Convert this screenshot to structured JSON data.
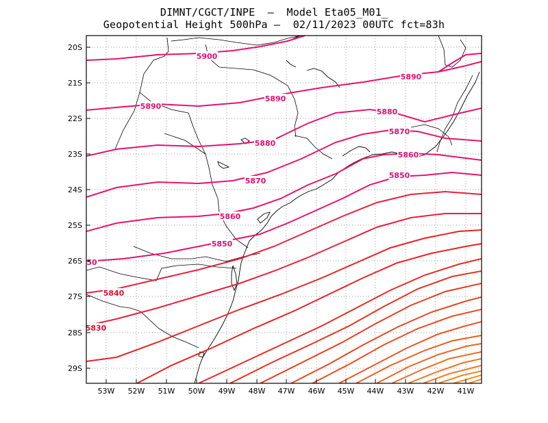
{
  "title_line1": "DIMNT/CGCT/INPE  –  Model Eta05_M01_",
  "title_line2": "Geopotential Height 500hPa –  02/11/2023 00UTC fct=83h",
  "lat_labels": [
    "20S",
    "21S",
    "22S",
    "23S",
    "24S",
    "25S",
    "26S",
    "27S",
    "28S",
    "29S"
  ],
  "lon_labels": [
    "53W",
    "52W",
    "51W",
    "50W",
    "49W",
    "48W",
    "47W",
    "46W",
    "45W",
    "44W",
    "43W",
    "42W",
    "41W"
  ],
  "contour_labels": [
    {
      "text": "5900",
      "color": "#e0106e"
    },
    {
      "text": "5890",
      "color": "#e0106e"
    },
    {
      "text": "5890",
      "color": "#e0106e"
    },
    {
      "text": "5890",
      "color": "#e0106e"
    },
    {
      "text": "5880",
      "color": "#e0106e"
    },
    {
      "text": "5880",
      "color": "#e0106e"
    },
    {
      "text": "5870",
      "color": "#e0106e"
    },
    {
      "text": "5870",
      "color": "#e0106e"
    },
    {
      "text": "5860",
      "color": "#e0106e"
    },
    {
      "text": "5860",
      "color": "#e0106e"
    },
    {
      "text": "5850",
      "color": "#e0106e"
    },
    {
      "text": "5850",
      "color": "#e0106e"
    },
    {
      "text": "50",
      "color": "#e0106e"
    },
    {
      "text": "5840",
      "color": "#e01030"
    },
    {
      "text": "5830",
      "color": "#e01030"
    }
  ],
  "colors": {
    "frame": "#000000",
    "grid": "#9a9a9a",
    "coast": "#000000"
  }
}
